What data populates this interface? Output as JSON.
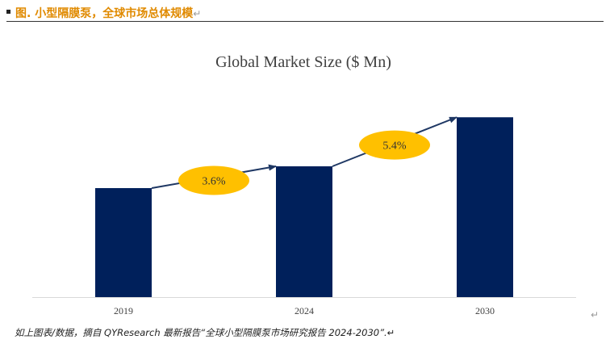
{
  "figure": {
    "title": "图. 小型隔膜泵，全球市场总体规模",
    "paragraph_mark": "↵"
  },
  "chart_data": {
    "type": "bar",
    "title": "Global Market Size ($ Mn)",
    "categories": [
      "2019",
      "2024",
      "2030"
    ],
    "values": [
      100,
      120,
      165
    ],
    "ylim": [
      0,
      180
    ],
    "grid": false,
    "bar_color": "#00205B",
    "annotations": [
      {
        "label": "3.6%",
        "from": "2019",
        "to": "2024"
      },
      {
        "label": "5.4%",
        "from": "2024",
        "to": "2030"
      }
    ],
    "annotation_color": "#FFC000",
    "arrow_color": "#1F3864"
  },
  "source_note": "如上图表/数据，摘自 QYResearch 最新报告“全球小型隔膜泵市场研究报告 2024-2030”.↵"
}
